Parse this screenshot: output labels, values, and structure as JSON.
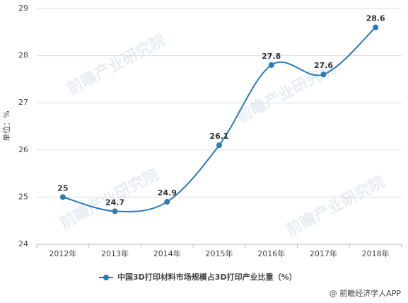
{
  "chart_data": {
    "type": "line",
    "y_label": "单位：%",
    "categories": [
      "2012年",
      "2013年",
      "2014年",
      "2015年",
      "2016年",
      "2017年",
      "2018年"
    ],
    "series": [
      {
        "name": "中国3D打印材料市场规模占3D打印产业比重（%）",
        "color": "#2a7ab5",
        "values": [
          25,
          24.7,
          24.9,
          26.1,
          27.8,
          27.6,
          28.6
        ]
      }
    ],
    "ylim": [
      24,
      29
    ],
    "yticks": [
      24,
      25,
      26,
      27,
      28,
      29
    ],
    "grid": true,
    "legend": "bottom",
    "source": "@ 前瞻经济学人APP",
    "watermark": "前瞻产业研究院"
  }
}
